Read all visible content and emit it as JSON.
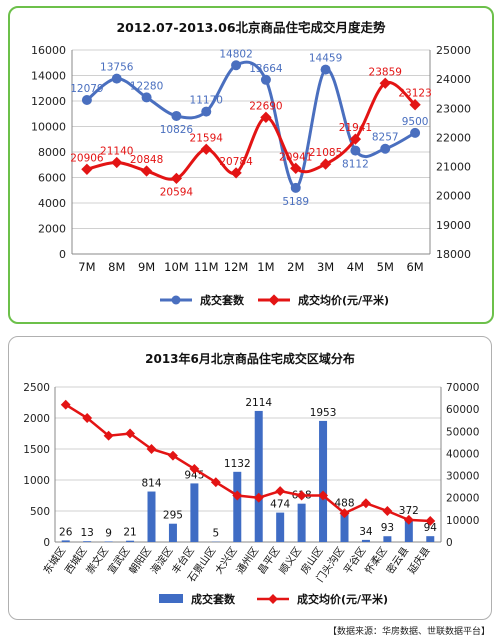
{
  "chart_data": [
    {
      "type": "line",
      "title": "2012.07-2013.06北京商品住宅成交月度走势",
      "categories": [
        "7M",
        "8M",
        "9M",
        "10M",
        "11M",
        "12M",
        "1M",
        "2M",
        "3M",
        "4M",
        "5M",
        "6M"
      ],
      "series": [
        {
          "name": "成交套数",
          "axis": "left",
          "color": "#4a6fbf",
          "values": [
            12079,
            13756,
            12280,
            10826,
            11170,
            14802,
            13664,
            5189,
            14459,
            8112,
            8257,
            9500
          ]
        },
        {
          "name": "成交均价(元/平米)",
          "axis": "right",
          "color": "#e31414",
          "values": [
            20906,
            21140,
            20848,
            20594,
            21594,
            20784,
            22690,
            20941,
            21085,
            21941,
            23859,
            23123
          ]
        }
      ],
      "y_left": {
        "min": 0,
        "max": 16000,
        "ticks": [
          "0",
          "2000",
          "4000",
          "6000",
          "8000",
          "10000",
          "12000",
          "14000",
          "16000"
        ]
      },
      "y_right": {
        "min": 18000,
        "max": 25000,
        "ticks": [
          "18000",
          "19000",
          "20000",
          "21000",
          "22000",
          "23000",
          "24000",
          "25000"
        ]
      },
      "grid": true,
      "legend": "bottom"
    },
    {
      "type": "bar",
      "title": "2013年6月北京商品住宅成交区域分布",
      "categories": [
        "东城区",
        "西城区",
        "崇文区",
        "宣武区",
        "朝阳区",
        "海淀区",
        "丰台区",
        "石景山区",
        "大兴区",
        "通州区",
        "昌平区",
        "顺义区",
        "房山区",
        "门头沟区",
        "平谷区",
        "怀柔区",
        "密云县",
        "延庆县"
      ],
      "series": [
        {
          "name": "成交套数",
          "type": "bar",
          "axis": "left",
          "color": "#3f6cc4",
          "values": [
            26,
            13,
            9,
            21,
            814,
            295,
            945,
            5,
            1132,
            2114,
            474,
            618,
            1953,
            488,
            34,
            93,
            372,
            94
          ]
        },
        {
          "name": "成交均价(元/平米)",
          "type": "line",
          "axis": "right",
          "color": "#e31414",
          "values": [
            62000,
            56000,
            48000,
            49000,
            42000,
            39000,
            33000,
            27000,
            21000,
            20000,
            23000,
            21000,
            21000,
            13000,
            17500,
            14000,
            10000,
            9500
          ]
        }
      ],
      "y_left": {
        "min": 0,
        "max": 2500,
        "ticks": [
          "0",
          "500",
          "1000",
          "1500",
          "2000",
          "2500"
        ]
      },
      "y_right": {
        "min": 0,
        "max": 70000,
        "ticks": [
          "0",
          "10000",
          "20000",
          "30000",
          "40000",
          "50000",
          "60000",
          "70000"
        ]
      },
      "grid": true,
      "legend": "bottom"
    }
  ],
  "footer": {
    "source": "【数据来源：华房数据、世联数据平台】"
  }
}
